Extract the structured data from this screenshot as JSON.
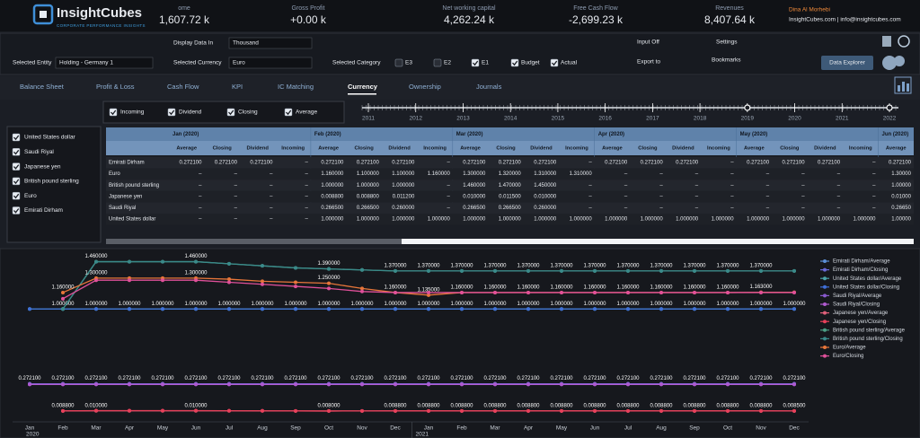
{
  "header": {
    "logo": "InsightCubes",
    "tagline": "CORPORATE PERFORMANCE INSIGHTS",
    "kpis": [
      {
        "label": "ome",
        "value": "1,607.72 k"
      },
      {
        "label": "Gross Profit",
        "value": "+0.00 k"
      },
      {
        "label": "Net working capital",
        "value": "4,262.24 k"
      },
      {
        "label": "Free Cash Flow",
        "value": "-2,699.23 k"
      },
      {
        "label": "Revenues",
        "value": "8,407.64 k"
      }
    ],
    "user": "Dina Al Morhebi",
    "contact": "InsightCubes.com | info@insightcubes.com"
  },
  "controls": {
    "display_label": "Display Data In",
    "display_value": "Thousand",
    "entity_label": "Selected Entity",
    "entity_value": "Holding - Germany 1",
    "currency_label": "Selected Currency",
    "currency_value": "Euro",
    "category_label": "Selected Category",
    "categories": [
      {
        "name": "E3",
        "checked": false
      },
      {
        "name": "E2",
        "checked": false
      },
      {
        "name": "E1",
        "checked": true
      },
      {
        "name": "Budget",
        "checked": true
      },
      {
        "name": "Actual",
        "checked": true
      }
    ],
    "input": "Input Off",
    "export": "Export to",
    "settings": "Settings",
    "bookmarks": "Bookmarks",
    "button": "Data Explorer"
  },
  "tabs": {
    "items": [
      "Balance Sheet",
      "Profit & Loss",
      "Cash Flow",
      "KPI",
      "IC Matching",
      "Currency",
      "Ownership",
      "Journals"
    ],
    "active": 5
  },
  "measures": [
    {
      "name": "Incoming",
      "checked": true
    },
    {
      "name": "Dividend",
      "checked": true
    },
    {
      "name": "Closing",
      "checked": true
    },
    {
      "name": "Average",
      "checked": true
    }
  ],
  "timeline": {
    "years": [
      2011,
      2012,
      2013,
      2014,
      2015,
      2016,
      2017,
      2018,
      2019,
      2020,
      2021,
      2022
    ],
    "range": [
      2019,
      2022
    ]
  },
  "currencies": [
    {
      "name": "United States dollar",
      "checked": true
    },
    {
      "name": "Saudi Riyal",
      "checked": true
    },
    {
      "name": "Japanese yen",
      "checked": true
    },
    {
      "name": "British pound sterling",
      "checked": true
    },
    {
      "name": "Euro",
      "checked": true
    },
    {
      "name": "Emirati Dirham",
      "checked": true
    }
  ],
  "table": {
    "months": [
      "Jan (2020)",
      "Feb (2020)",
      "Mar (2020)",
      "Apr (2020)",
      "May (2020)",
      "Jun (2020)"
    ],
    "columns": [
      "Average",
      "Closing",
      "Dividend",
      "Incoming",
      "Average",
      "Closing",
      "Dividend",
      "Incoming",
      "Average",
      "Closing",
      "Dividend",
      "Incoming",
      "Average",
      "Closing",
      "Dividend",
      "Incoming",
      "Average",
      "Closing",
      "Dividend",
      "Incoming",
      "Average"
    ],
    "rows": [
      {
        "name": "Emirati Dirham",
        "cells": [
          "0.272100",
          "0.272100",
          "0.272100",
          "–",
          "0.272100",
          "0.272100",
          "0.272100",
          "–",
          "0.272100",
          "0.272100",
          "0.272100",
          "–",
          "0.272100",
          "0.272100",
          "0.272100",
          "–",
          "0.272100",
          "0.272100",
          "0.272100",
          "–",
          "0.272100"
        ]
      },
      {
        "name": "Euro",
        "cells": [
          "–",
          "–",
          "–",
          "–",
          "1.160000",
          "1.100000",
          "1.100000",
          "1.160000",
          "1.300000",
          "1.320000",
          "1.310000",
          "1.310000",
          "–",
          "–",
          "–",
          "–",
          "–",
          "–",
          "–",
          "–",
          "1.30000"
        ]
      },
      {
        "name": "British pound sterling",
        "cells": [
          "–",
          "–",
          "–",
          "–",
          "1.000000",
          "1.000000",
          "1.000000",
          "–",
          "1.460000",
          "1.470000",
          "1.450000",
          "–",
          "–",
          "–",
          "–",
          "–",
          "–",
          "–",
          "–",
          "–",
          "1.00000"
        ]
      },
      {
        "name": "Japanese yen",
        "cells": [
          "–",
          "–",
          "–",
          "–",
          "0.008800",
          "0.008800",
          "0.011200",
          "–",
          "0.010000",
          "0.011500",
          "0.010000",
          "–",
          "–",
          "–",
          "–",
          "–",
          "–",
          "–",
          "–",
          "–",
          "0.01000"
        ]
      },
      {
        "name": "Saudi Riyal",
        "cells": [
          "–",
          "–",
          "–",
          "–",
          "0.266500",
          "0.266500",
          "0.260000",
          "–",
          "0.266500",
          "0.266500",
          "0.260000",
          "–",
          "–",
          "–",
          "–",
          "–",
          "–",
          "–",
          "–",
          "–",
          "0.26650"
        ]
      },
      {
        "name": "United States dollar",
        "cells": [
          "–",
          "–",
          "–",
          "–",
          "1.000000",
          "1.000000",
          "1.000000",
          "1.000000",
          "1.000000",
          "1.000000",
          "1.000000",
          "1.000000",
          "1.000000",
          "1.000000",
          "1.000000",
          "1.000000",
          "1.000000",
          "1.000000",
          "1.000000",
          "1.000000",
          "1.00000"
        ]
      }
    ]
  },
  "chart_data": {
    "type": "line",
    "categories": [
      "Jan",
      "Feb",
      "Mar",
      "Apr",
      "May",
      "Jun",
      "Jul",
      "Aug",
      "Sep",
      "Oct",
      "Nov",
      "Dec",
      "Jan",
      "Feb",
      "Mar",
      "Apr",
      "May",
      "Jun",
      "Jul",
      "Aug",
      "Sep",
      "Oct",
      "Nov",
      "Dec"
    ],
    "year_labels": [
      {
        "label": "2020",
        "index": 0
      },
      {
        "label": "2021",
        "index": 12
      }
    ],
    "ylim": [
      -0.08,
      1.5
    ],
    "series": [
      {
        "name": "Emirati Dirham/Average",
        "color": "#5b8fd6",
        "values": [
          0.2721,
          0.2721,
          0.2721,
          0.2721,
          0.2721,
          0.2721,
          0.2721,
          0.2721,
          0.2721,
          0.2721,
          0.2721,
          0.2721,
          0.2721,
          0.2721,
          0.2721,
          0.2721,
          0.2721,
          0.2721,
          0.2721,
          0.2721,
          0.2721,
          0.2721,
          0.2721,
          0.2721
        ],
        "value_labels": [
          "0.272100",
          "0.272100",
          "0.272100",
          "0.272100",
          "0.272100",
          "0.272100",
          "0.272100",
          "0.272100",
          "0.272100",
          "0.272100",
          "0.272100",
          "0.272100",
          "0.272100",
          "0.272100",
          "0.272100",
          "0.272100",
          "0.272100",
          "0.272100",
          "0.272100",
          "0.272100",
          "0.272100",
          "0.272100",
          "0.272100",
          "0.272100"
        ]
      },
      {
        "name": "Emirati Dirham/Closing",
        "color": "#6a6ad8",
        "values": [
          0.2721,
          0.2721,
          0.2721,
          0.2721,
          0.2721,
          0.2721,
          0.2721,
          0.2721,
          0.2721,
          0.2721,
          0.2721,
          0.2721,
          0.2721,
          0.2721,
          0.2721,
          0.2721,
          0.2721,
          0.2721,
          0.2721,
          0.2721,
          0.2721,
          0.2721,
          0.2721,
          0.2721
        ]
      },
      {
        "name": "United States dollar/Average",
        "color": "#4aa3a8",
        "values": [
          1,
          1,
          1,
          1,
          1,
          1,
          1,
          1,
          1,
          1,
          1,
          1,
          1,
          1,
          1,
          1,
          1,
          1,
          1,
          1,
          1,
          1,
          1,
          1
        ]
      },
      {
        "name": "United States dollar/Closing",
        "color": "#3f6fd8",
        "values": [
          1,
          1,
          1,
          1,
          1,
          1,
          1,
          1,
          1,
          1,
          1,
          1,
          1,
          1,
          1,
          1,
          1,
          1,
          1,
          1,
          1,
          1,
          1,
          1
        ],
        "value_labels": [
          null,
          "1.000000",
          "1.000000",
          "1.000000",
          "1.000000",
          "1.000000",
          "1.000000",
          "1.000000",
          "1.000000",
          "1.000000",
          "1.000000",
          "1.000000",
          "1.000000",
          "1.000000",
          "1.000000",
          "1.000000",
          "1.000000",
          "1.000000",
          "1.000000",
          "1.000000",
          "1.000000",
          "1.000000",
          "1.000000",
          "1.000000"
        ]
      },
      {
        "name": "Saudi Riyal/Average",
        "color": "#8a5ad0",
        "values": [
          0.2665,
          0.2665,
          0.2665,
          0.2665,
          0.2665,
          0.2665,
          0.2665,
          0.2665,
          0.2665,
          0.2665,
          0.2665,
          0.2665,
          0.2665,
          0.2665,
          0.2665,
          0.2665,
          0.2665,
          0.2665,
          0.2665,
          0.2665,
          0.2665,
          0.2665,
          0.2665,
          0.2665
        ]
      },
      {
        "name": "Saudi Riyal/Closing",
        "color": "#b05ad0",
        "values": [
          0.2665,
          0.2665,
          0.2665,
          0.2665,
          0.2665,
          0.2665,
          0.2665,
          0.2665,
          0.2665,
          0.2665,
          0.2665,
          0.2665,
          0.2665,
          0.2665,
          0.2665,
          0.2665,
          0.2665,
          0.2665,
          0.2665,
          0.2665,
          0.2665,
          0.2665,
          0.2665,
          0.2665
        ]
      },
      {
        "name": "Japanese yen/Average",
        "color": "#e0607a",
        "values": [
          null,
          0.0088,
          0.01,
          0.01,
          0.01,
          0.01,
          0.0095,
          0.009,
          0.0085,
          0.008,
          0.0084,
          0.0088,
          0.0088,
          0.0088,
          0.0088,
          0.0088,
          0.0088,
          0.0088,
          0.0088,
          0.0088,
          0.0088,
          0.0088,
          0.0088,
          0.0085
        ],
        "value_labels": [
          null,
          "0.008800",
          "0.010000",
          null,
          null,
          "0.010000",
          null,
          null,
          null,
          "0.008000",
          null,
          "0.008800",
          "0.008800",
          "0.008800",
          "0.008800",
          "0.008800",
          "0.008800",
          "0.008800",
          "0.008800",
          "0.008800",
          "0.008800",
          "0.008800",
          "0.008800",
          "0.008500"
        ]
      },
      {
        "name": "Japanese yen/Closing",
        "color": "#e8405a",
        "values": [
          null,
          0.0088,
          0.0115,
          0.0115,
          0.0115,
          0.0115,
          0.0105,
          0.0095,
          0.0088,
          0.008,
          0.0084,
          0.0088,
          0.0088,
          0.0088,
          0.0088,
          0.0088,
          0.0088,
          0.0088,
          0.0088,
          0.0088,
          0.0088,
          0.0088,
          0.0088,
          0.0085
        ]
      },
      {
        "name": "British pound sterling/Average",
        "color": "#4c9f86",
        "values": [
          null,
          1,
          1.46,
          1.46,
          1.46,
          1.46,
          1.44,
          1.42,
          1.4,
          1.39,
          1.38,
          1.37,
          1.37,
          1.37,
          1.37,
          1.37,
          1.37,
          1.37,
          1.37,
          1.37,
          1.37,
          1.37,
          1.37,
          1.37
        ],
        "value_labels": [
          null,
          null,
          "1.460000",
          null,
          null,
          "1.460000",
          null,
          null,
          null,
          "1.390000",
          null,
          "1.370000",
          "1.370000",
          "1.370000",
          "1.370000",
          "1.370000",
          "1.370000",
          "1.370000",
          "1.370000",
          "1.370000",
          "1.370000",
          "1.370000",
          "1.370000",
          null
        ]
      },
      {
        "name": "British pound sterling/Closing",
        "color": "#3a8a8a",
        "values": [
          null,
          1,
          1.46,
          1.46,
          1.46,
          1.46,
          1.44,
          1.42,
          1.4,
          1.39,
          1.38,
          1.37,
          1.37,
          1.37,
          1.37,
          1.37,
          1.37,
          1.37,
          1.37,
          1.37,
          1.37,
          1.37,
          1.37,
          1.37
        ]
      },
      {
        "name": "Euro/Average",
        "color": "#e8763a",
        "values": [
          null,
          1.16,
          1.3,
          1.3,
          1.3,
          1.3,
          1.29,
          1.27,
          1.26,
          1.25,
          1.2,
          1.16,
          1.135,
          1.16,
          1.16,
          1.16,
          1.16,
          1.16,
          1.16,
          1.16,
          1.16,
          1.16,
          1.163,
          1.163
        ],
        "value_labels": [
          null,
          "1.160000",
          "1.300000",
          null,
          null,
          "1.300000",
          null,
          null,
          null,
          "1.250000",
          null,
          "1.160000",
          "1.135000",
          "1.160000",
          "1.160000",
          "1.160000",
          "1.160000",
          "1.160000",
          "1.160000",
          "1.160000",
          "1.160000",
          "1.160000",
          "1.163000",
          null
        ]
      },
      {
        "name": "Euro/Closing",
        "color": "#e0509a",
        "values": [
          null,
          1.1,
          1.28,
          1.28,
          1.28,
          1.28,
          1.26,
          1.24,
          1.22,
          1.2,
          1.17,
          1.16,
          1.16,
          1.16,
          1.16,
          1.16,
          1.16,
          1.16,
          1.16,
          1.16,
          1.16,
          1.16,
          1.16,
          1.16
        ]
      }
    ]
  }
}
